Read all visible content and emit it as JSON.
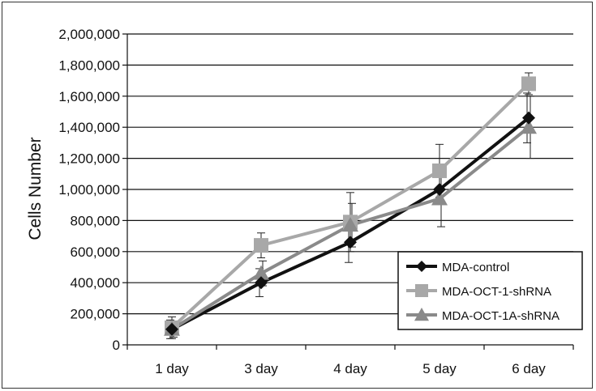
{
  "chart_data": {
    "type": "line",
    "categories": [
      "1 day",
      "3 day",
      "4 day",
      "5 day",
      "6 day"
    ],
    "ylabel": "Cells Number",
    "xlabel": "",
    "ylim": [
      0,
      2000000
    ],
    "yticks": [
      0,
      200000,
      400000,
      600000,
      800000,
      1000000,
      1200000,
      1400000,
      1600000,
      1800000,
      2000000
    ],
    "ytick_labels": [
      "0",
      "200,000",
      "400,000",
      "600,000",
      "800,000",
      "1,000,000",
      "1,200,000",
      "1,400,000",
      "1,600,000",
      "1,800,000",
      "2,000,000"
    ],
    "grid": "horizontal",
    "legend_position": "lower-right",
    "series": [
      {
        "name": "MDA-control",
        "color": "#111111",
        "marker": "diamond",
        "values": [
          100000,
          400000,
          660000,
          1000000,
          1460000
        ],
        "err": [
          60000,
          90000,
          130000,
          0,
          160000
        ]
      },
      {
        "name": "MDA-OCT-1-shRNA",
        "color": "#a8a8a8",
        "marker": "square",
        "values": [
          110000,
          640000,
          790000,
          1120000,
          1680000
        ],
        "err": [
          70000,
          80000,
          190000,
          170000,
          70000
        ]
      },
      {
        "name": "MDA-OCT-1A-shRNA",
        "color": "#8a8a8a",
        "marker": "triangle",
        "values": [
          100000,
          460000,
          770000,
          940000,
          1400000
        ],
        "err": [
          50000,
          80000,
          140000,
          180000,
          200000
        ]
      }
    ]
  }
}
